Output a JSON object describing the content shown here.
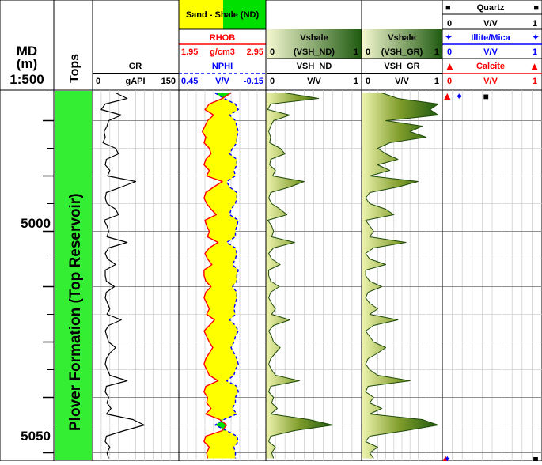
{
  "md_header": {
    "title": "MD",
    "unit": "(m)",
    "scale": "1:500"
  },
  "tops_header": "Tops",
  "depth_labels": [
    "5000",
    "5050"
  ],
  "formation_name": "Plover Formation (Top Reservoir)",
  "gr_track": {
    "name": "GR",
    "min": "0",
    "unit": "gAPI",
    "max": "150",
    "color": "#000000"
  },
  "nd_track": {
    "fill_legend": {
      "sand_label": "Sand - Shale (ND)",
      "sand_color": "#ffff00",
      "shale_color": "#00e000"
    },
    "rhob": {
      "name": "RHOB",
      "min": "1.95",
      "unit": "g/cm3",
      "max": "2.95",
      "color": "#ff0000"
    },
    "nphi": {
      "name": "NPHI",
      "min": "0.45",
      "unit": "V/V",
      "max": "-0.15",
      "color": "#0000ff"
    }
  },
  "vsh_nd_track": {
    "fill_label": "Vshale",
    "range_min": "0",
    "range_curve": "(VSH_ND)",
    "range_max": "1",
    "name": "VSH_ND",
    "min": "0",
    "unit": "V/V",
    "max": "1"
  },
  "vsh_gr_track": {
    "fill_label": "Vshale",
    "range_min": "0",
    "range_curve": "(VSH_GR)",
    "range_max": "1",
    "name": "VSH_GR",
    "min": "0",
    "unit": "V/V",
    "max": "1"
  },
  "mineral_track": [
    {
      "name": "Quartz",
      "symbol": "■",
      "min": "0",
      "unit": "V/V",
      "max": "1",
      "color": "#000000"
    },
    {
      "name": "Illite/Mica",
      "symbol": "✦",
      "min": "0",
      "unit": "V/V",
      "max": "1",
      "color": "#0000ff"
    },
    {
      "name": "Calcite",
      "symbol": "▲",
      "min": "0",
      "unit": "V/V",
      "max": "1",
      "color": "#ff0000"
    }
  ],
  "chart_data": {
    "type": "line",
    "depth_range": [
      4984.5,
      5051.5
    ],
    "depth_ticks": [
      5000,
      5050
    ],
    "depth": [
      4985,
      4986,
      4987,
      4988,
      4989,
      4990,
      4991,
      4992,
      4993,
      4994,
      4995,
      4996,
      4997,
      4998,
      4999,
      5000,
      5001,
      5002,
      5003,
      5004,
      5005,
      5006,
      5007,
      5008,
      5009,
      5010,
      5011,
      5012,
      5013,
      5014,
      5015,
      5016,
      5017,
      5018,
      5019,
      5020,
      5021,
      5022,
      5023,
      5024,
      5025,
      5026,
      5027,
      5028,
      5029,
      5030,
      5031,
      5032,
      5033,
      5034,
      5035,
      5036,
      5037,
      5038,
      5039,
      5040,
      5041,
      5042,
      5043,
      5044,
      5045,
      5046,
      5047,
      5048,
      5049,
      5050,
      5051
    ],
    "series": [
      {
        "name": "GR",
        "unit": "gAPI",
        "xlim": [
          0,
          150
        ],
        "values": [
          40,
          60,
          22,
          15,
          50,
          28,
          25,
          20,
          22,
          18,
          40,
          45,
          24,
          22,
          30,
          26,
          75,
          50,
          24,
          22,
          25,
          40,
          45,
          20,
          25,
          28,
          25,
          60,
          28,
          22,
          26,
          40,
          22,
          22,
          24,
          38,
          24,
          22,
          26,
          30,
          25,
          50,
          28,
          22,
          25,
          28,
          40,
          30,
          24,
          22,
          26,
          30,
          60,
          24,
          22,
          28,
          25,
          32,
          24,
          70,
          90,
          55,
          24,
          22,
          30,
          25,
          28
        ]
      },
      {
        "name": "RHOB",
        "unit": "g/cm3",
        "xlim": [
          1.95,
          2.95
        ],
        "values": [
          2.55,
          2.45,
          2.3,
          2.25,
          2.35,
          2.28,
          2.25,
          2.22,
          2.26,
          2.24,
          2.3,
          2.32,
          2.26,
          2.24,
          2.3,
          2.27,
          2.45,
          2.35,
          2.26,
          2.24,
          2.27,
          2.32,
          2.38,
          2.25,
          2.27,
          2.3,
          2.28,
          2.4,
          2.3,
          2.25,
          2.28,
          2.33,
          2.24,
          2.24,
          2.26,
          2.32,
          2.26,
          2.24,
          2.27,
          2.3,
          2.27,
          2.36,
          2.3,
          2.24,
          2.27,
          2.3,
          2.34,
          2.3,
          2.26,
          2.24,
          2.27,
          2.3,
          2.4,
          2.26,
          2.24,
          2.28,
          2.27,
          2.32,
          2.26,
          2.42,
          2.5,
          2.45,
          2.26,
          2.24,
          2.3,
          2.27,
          2.28
        ]
      },
      {
        "name": "NPHI",
        "unit": "V/V",
        "xlim": [
          0.45,
          -0.15
        ],
        "values": [
          0.2,
          0.14,
          0.06,
          0.04,
          0.1,
          0.06,
          0.05,
          0.04,
          0.05,
          0.05,
          0.08,
          0.1,
          0.05,
          0.05,
          0.07,
          0.06,
          0.12,
          0.1,
          0.05,
          0.05,
          0.06,
          0.09,
          0.1,
          0.04,
          0.05,
          0.06,
          0.06,
          0.12,
          0.06,
          0.05,
          0.06,
          0.08,
          0.04,
          0.05,
          0.05,
          0.08,
          0.05,
          0.05,
          0.06,
          0.07,
          0.06,
          0.1,
          0.06,
          0.04,
          0.06,
          0.07,
          0.09,
          0.07,
          0.05,
          0.04,
          0.06,
          0.07,
          0.12,
          0.05,
          0.04,
          0.06,
          0.06,
          0.08,
          0.05,
          0.14,
          0.2,
          0.12,
          0.05,
          0.04,
          0.07,
          0.06,
          0.06
        ]
      },
      {
        "name": "VSH_ND",
        "unit": "V/V",
        "xlim": [
          0,
          1
        ],
        "values": [
          0.2,
          0.55,
          0.05,
          0.02,
          0.25,
          0.08,
          0.05,
          0.03,
          0.05,
          0.04,
          0.15,
          0.2,
          0.05,
          0.04,
          0.1,
          0.07,
          0.4,
          0.25,
          0.05,
          0.03,
          0.06,
          0.15,
          0.22,
          0.02,
          0.06,
          0.08,
          0.06,
          0.3,
          0.08,
          0.03,
          0.06,
          0.15,
          0.03,
          0.03,
          0.05,
          0.14,
          0.05,
          0.03,
          0.06,
          0.1,
          0.06,
          0.25,
          0.08,
          0.03,
          0.06,
          0.08,
          0.15,
          0.1,
          0.05,
          0.03,
          0.06,
          0.1,
          0.35,
          0.05,
          0.03,
          0.08,
          0.06,
          0.12,
          0.05,
          0.45,
          0.7,
          0.3,
          0.05,
          0.03,
          0.1,
          0.06,
          0.08
        ]
      },
      {
        "name": "VSH_GR",
        "unit": "V/V",
        "xlim": [
          0,
          1
        ],
        "values": [
          0.25,
          0.45,
          0.95,
          0.85,
          0.95,
          0.3,
          0.75,
          0.6,
          0.8,
          0.35,
          0.2,
          0.3,
          0.45,
          0.2,
          0.35,
          0.1,
          0.7,
          0.45,
          0.1,
          0.05,
          0.1,
          0.3,
          0.4,
          0.05,
          0.1,
          0.15,
          0.1,
          0.55,
          0.15,
          0.05,
          0.1,
          0.3,
          0.05,
          0.05,
          0.1,
          0.25,
          0.08,
          0.05,
          0.1,
          0.2,
          0.1,
          0.45,
          0.15,
          0.05,
          0.1,
          0.15,
          0.3,
          0.2,
          0.08,
          0.05,
          0.1,
          0.2,
          0.6,
          0.08,
          0.05,
          0.15,
          0.1,
          0.25,
          0.1,
          0.75,
          0.95,
          0.55,
          0.1,
          0.05,
          0.2,
          0.1,
          0.15
        ]
      }
    ],
    "mineral_points": [
      {
        "name": "Calcite",
        "depth": 4985.5,
        "value": 0.02
      },
      {
        "name": "Illite/Mica",
        "depth": 4985.5,
        "value": 0.15
      },
      {
        "name": "Quartz",
        "depth": 4985.5,
        "value": 0.45
      },
      {
        "name": "Calcite",
        "depth": 5051,
        "value": 0.0
      },
      {
        "name": "Illite/Mica",
        "depth": 5051,
        "value": 0.02
      },
      {
        "name": "Quartz",
        "depth": 5051,
        "value": 1.0
      }
    ]
  }
}
